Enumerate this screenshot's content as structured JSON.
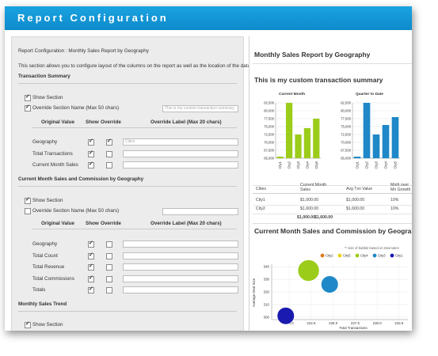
{
  "window": {
    "title": "Report Configuration"
  },
  "config": {
    "header": "Report Configuration : Monthly Sales Report by Geography",
    "description": "This section allows you to configure layout of the columns on the report as well as the location of the data.",
    "columns": {
      "original": "Original Value",
      "show": "Show",
      "override": "Override",
      "label": "Override Label (Max 20 chars)"
    },
    "show_section_label": "Show Section",
    "override_name_label": "Override Section Name (Max 50 chars)",
    "sections": [
      {
        "title": "Transaction Summary",
        "show": true,
        "override_name": true,
        "name_value": "This is my custom transaction summary",
        "rows": [
          {
            "name": "Geography",
            "show": true,
            "override": true,
            "label": "Cities"
          },
          {
            "name": "Total Transactions",
            "show": true,
            "override": false,
            "label": ""
          },
          {
            "name": "Current Month Sales",
            "show": true,
            "override": false,
            "label": ""
          }
        ]
      },
      {
        "title": "Current Month Sales and Commission by Geography",
        "show": true,
        "override_name": false,
        "name_value": "",
        "rows": [
          {
            "name": "Geography",
            "show": true,
            "override": false,
            "label": ""
          },
          {
            "name": "Total Count",
            "show": true,
            "override": false,
            "label": ""
          },
          {
            "name": "Total Revenue",
            "show": true,
            "override": false,
            "label": ""
          },
          {
            "name": "Total Commissions",
            "show": true,
            "override": false,
            "label": ""
          },
          {
            "name": "Totals",
            "show": true,
            "override": false,
            "label": ""
          }
        ]
      },
      {
        "title": "Monthly Sales Trend",
        "show": true,
        "override_name": false,
        "name_value": "",
        "rows": []
      }
    ]
  },
  "report": {
    "title": "Monthly Sales Report by Geography",
    "summary_title": "This is my custom transaction summary",
    "table": {
      "headers": [
        "Cities",
        "Current Month Sales",
        "Avg Txn Value",
        "Mnth over Mn Growth"
      ],
      "rows": [
        [
          "City1",
          "$1,000.00",
          "$1,000.00",
          "10%"
        ],
        [
          "City2",
          "$1,600.00",
          "$1,600.00",
          "10%"
        ]
      ],
      "totals": [
        "",
        "$1,000.00",
        "$1,600.00",
        ""
      ]
    },
    "bubble_title": "Current Month Sales and Commission by Geography",
    "colors": {
      "green": "#9ccc1a",
      "blue": "#1e88c8",
      "dark_blue": "#1a1ab0",
      "title_bar": "#1aa3e0"
    }
  },
  "chart_data": [
    {
      "type": "bar",
      "title": "Current Month",
      "categories": [
        "City1",
        "City2",
        "City3",
        "City4",
        "City5"
      ],
      "values": [
        65500,
        82500,
        72500,
        74500,
        77500
      ],
      "ylim": [
        65000,
        82500
      ],
      "yticks": [
        "82,500",
        "80,000",
        "77,500",
        "75,000",
        "72,500",
        "70,000",
        "67,500",
        "65,000"
      ],
      "color": "#9ccc1a"
    },
    {
      "type": "bar",
      "title": "Quarter to Date",
      "categories": [
        "City1",
        "City2",
        "City3",
        "City4",
        "City5"
      ],
      "values": [
        65500,
        82500,
        72500,
        75500,
        78000
      ],
      "ylim": [
        65000,
        82500
      ],
      "yticks": [
        "82,500",
        "80,000",
        "77,500",
        "75,000",
        "72,500",
        "70,000",
        "67,500",
        "65,000"
      ],
      "color": "#1e88c8"
    },
    {
      "type": "scatter",
      "subtitle": "** size of bubble based on total sales",
      "xlabel": "Total Transactions",
      "ylabel": "Average Deal Size",
      "xlim": [
        218,
        233.5
      ],
      "ylim": [
        298,
        342
      ],
      "xticks": [
        "220.0",
        "222.5",
        "225.0",
        "227.5",
        "230.0",
        "232.5"
      ],
      "yticks": [
        "340",
        "330",
        "320",
        "310",
        "300"
      ],
      "legend": [
        {
          "name": "City2",
          "color": "#e07b1a"
        },
        {
          "name": "City5",
          "color": "#e8d21a"
        },
        {
          "name": "City4",
          "color": "#9ccc1a"
        },
        {
          "name": "City3",
          "color": "#1e88c8"
        },
        {
          "name": "City1",
          "color": "#1a1ab0"
        }
      ],
      "points": [
        {
          "series": "City4",
          "x": 222.2,
          "y": 337,
          "size": 5
        },
        {
          "series": "City3",
          "x": 224.6,
          "y": 326,
          "size": 4
        },
        {
          "series": "City1",
          "x": 219.6,
          "y": 301,
          "size": 4
        }
      ]
    }
  ]
}
